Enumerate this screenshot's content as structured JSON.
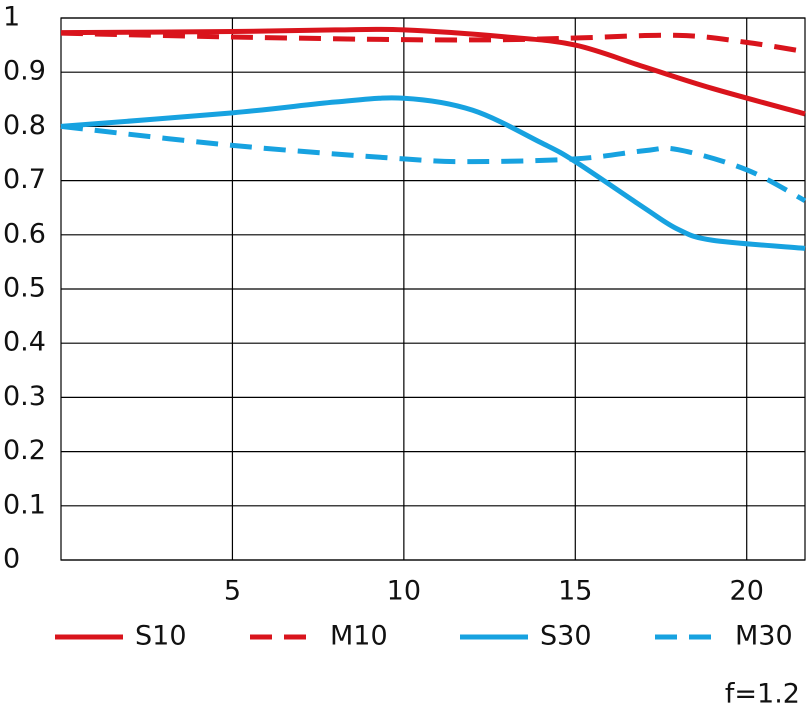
{
  "chart_data": {
    "type": "line",
    "annotation": "f=1.2",
    "xlim": [
      0,
      21.7
    ],
    "ylim": [
      0,
      1
    ],
    "xticks": [
      5,
      10,
      15,
      20
    ],
    "yticks": [
      0,
      0.1,
      0.2,
      0.3,
      0.4,
      0.5,
      0.6,
      0.7,
      0.8,
      0.9,
      1
    ],
    "grid": true,
    "legend": "bottom",
    "series": [
      {
        "name": "S10",
        "color": "#d9141c",
        "dashed": false,
        "x": [
          0,
          5,
          8,
          10,
          13,
          15,
          17,
          19,
          21.7
        ],
        "values": [
          0.973,
          0.975,
          0.978,
          0.978,
          0.965,
          0.95,
          0.91,
          0.87,
          0.823
        ]
      },
      {
        "name": "M10",
        "color": "#d9141c",
        "dashed": true,
        "x": [
          0,
          5,
          10,
          13,
          15,
          18,
          20,
          21.7
        ],
        "values": [
          0.972,
          0.965,
          0.96,
          0.96,
          0.963,
          0.968,
          0.955,
          0.938
        ]
      },
      {
        "name": "S30",
        "color": "#17a2e0",
        "dashed": false,
        "x": [
          0,
          5,
          8,
          10,
          12,
          14,
          15,
          17,
          18,
          19,
          21.7
        ],
        "values": [
          0.8,
          0.825,
          0.845,
          0.852,
          0.83,
          0.77,
          0.735,
          0.65,
          0.61,
          0.59,
          0.575
        ]
      },
      {
        "name": "M30",
        "color": "#17a2e0",
        "dashed": true,
        "x": [
          0,
          5,
          10,
          12,
          15,
          17,
          18,
          20,
          21.7
        ],
        "values": [
          0.8,
          0.765,
          0.74,
          0.735,
          0.74,
          0.755,
          0.757,
          0.72,
          0.663
        ]
      }
    ]
  }
}
